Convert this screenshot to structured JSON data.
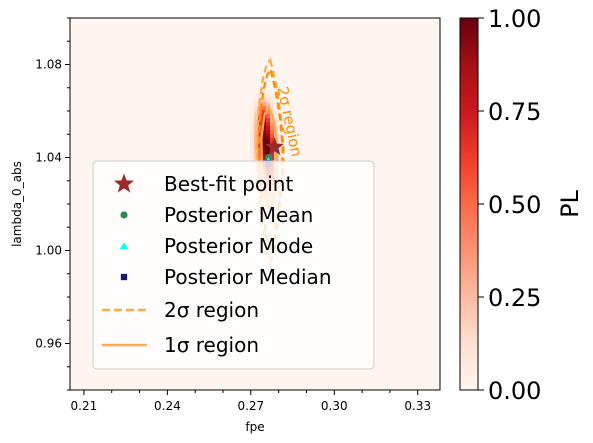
{
  "chart_data": {
    "type": "heatmap",
    "xlabel": "fpe",
    "ylabel": "lambda_0_abs",
    "xlim": [
      0.205,
      0.338
    ],
    "ylim": [
      0.94,
      1.1
    ],
    "x_ticks": [
      0.21,
      0.24,
      0.27,
      0.3,
      0.33
    ],
    "x_tick_labels": [
      "0.21",
      "0.24",
      "0.27",
      "0.30",
      "0.33"
    ],
    "y_ticks": [
      0.96,
      1.0,
      1.04,
      1.08
    ],
    "y_tick_labels": [
      "0.96",
      "1.00",
      "1.04",
      "1.08"
    ],
    "colorbar": {
      "label": "PL",
      "ticks": [
        0.0,
        0.25,
        0.5,
        0.75,
        1.0
      ],
      "tick_labels": [
        "0.00",
        "0.25",
        "0.50",
        "0.75",
        "1.00"
      ],
      "colormap": [
        "#fff5f0",
        "#fee0d2",
        "#fcbba1",
        "#fc9272",
        "#fb6a4a",
        "#ef3b2c",
        "#cb181d",
        "#a50f15",
        "#67000d"
      ]
    },
    "heatmap_blobs": [
      {
        "x": 0.2755,
        "y": 1.045,
        "sx": 0.0022,
        "sy": 0.0075,
        "amp": 1.0
      },
      {
        "x": 0.2745,
        "y": 1.057,
        "sx": 0.0016,
        "sy": 0.005,
        "amp": 0.55
      },
      {
        "x": 0.277,
        "y": 1.032,
        "sx": 0.0016,
        "sy": 0.006,
        "amp": 0.45
      },
      {
        "x": 0.276,
        "y": 1.02,
        "sx": 0.0012,
        "sy": 0.004,
        "amp": 0.18
      }
    ],
    "best_fit": {
      "x": 0.2785,
      "y": 1.0445
    },
    "posterior_mean": {
      "x": 0.2765,
      "y": 1.04
    },
    "posterior_mode": {
      "x": 0.2763,
      "y": 1.0385
    },
    "posterior_median": {
      "x": 0.2763,
      "y": 1.0375
    },
    "contour_2sigma": [
      [
        0.277,
        1.082
      ],
      [
        0.279,
        1.072
      ],
      [
        0.2808,
        1.058
      ],
      [
        0.2818,
        1.044
      ],
      [
        0.2816,
        1.03
      ],
      [
        0.2802,
        1.016
      ],
      [
        0.2785,
        1.001
      ],
      [
        0.277,
        0.995
      ],
      [
        0.2755,
        1.0
      ],
      [
        0.274,
        1.012
      ],
      [
        0.2727,
        1.028
      ],
      [
        0.2722,
        1.044
      ],
      [
        0.2728,
        1.06
      ],
      [
        0.2742,
        1.073
      ],
      [
        0.2757,
        1.08
      ],
      [
        0.277,
        1.082
      ]
    ],
    "contour_1sigma": [
      [
        0.2765,
        1.062
      ],
      [
        0.2785,
        1.055
      ],
      [
        0.2796,
        1.044
      ],
      [
        0.2793,
        1.032
      ],
      [
        0.278,
        1.021
      ],
      [
        0.2765,
        1.018
      ],
      [
        0.275,
        1.024
      ],
      [
        0.274,
        1.036
      ],
      [
        0.2738,
        1.048
      ],
      [
        0.2748,
        1.058
      ],
      [
        0.2765,
        1.062
      ]
    ],
    "contour_annotation": "2σ region",
    "legend": {
      "placement": "lower-left",
      "entries": [
        {
          "label": "Best-fit point",
          "marker": "star",
          "color": "#9b2a2a"
        },
        {
          "label": "Posterior Mean",
          "marker": "circle",
          "color": "#2e8b57"
        },
        {
          "label": "Posterior Mode",
          "marker": "triangle",
          "color": "#00ffff"
        },
        {
          "label": "Posterior Median",
          "marker": "square",
          "color": "#191970"
        },
        {
          "label": "2σ region",
          "marker": "dashed-line",
          "color": "#ffa94d"
        },
        {
          "label": "1σ region",
          "marker": "solid-line",
          "color": "#ffa94d"
        }
      ]
    }
  }
}
